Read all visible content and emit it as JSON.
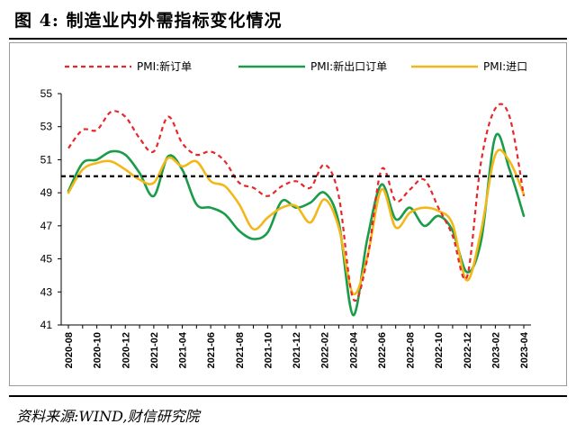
{
  "figure": {
    "title": "图 4:  制造业内外需指标变化情况",
    "source": "资料来源:WIND,财信研究院"
  },
  "chart_data": {
    "type": "line",
    "ylim": [
      41,
      55
    ],
    "yticks": [
      41,
      43,
      45,
      47,
      49,
      51,
      53,
      55
    ],
    "x": [
      "2020-08",
      "2020-09",
      "2020-10",
      "2020-11",
      "2020-12",
      "2021-01",
      "2021-02",
      "2021-03",
      "2021-04",
      "2021-05",
      "2021-06",
      "2021-07",
      "2021-08",
      "2021-09",
      "2021-10",
      "2021-11",
      "2021-12",
      "2022-01",
      "2022-02",
      "2022-03",
      "2022-04",
      "2022-05",
      "2022-06",
      "2022-07",
      "2022-08",
      "2022-09",
      "2022-10",
      "2022-11",
      "2022-12",
      "2023-01",
      "2023-02",
      "2023-03",
      "2023-04"
    ],
    "xtick_labels": [
      "2020-08",
      "2020-10",
      "2020-12",
      "2021-02",
      "2021-04",
      "2021-06",
      "2021-08",
      "2021-10",
      "2021-12",
      "2022-02",
      "2022-04",
      "2022-06",
      "2022-08",
      "2022-10",
      "2022-12",
      "2023-02",
      "2023-04"
    ],
    "grid": false,
    "legend_position": "top",
    "series": [
      {
        "name": "PMI:新订单",
        "color": "#e8272a",
        "style": "dashed",
        "values": [
          51.7,
          52.8,
          52.8,
          53.9,
          53.6,
          52.3,
          51.5,
          53.6,
          52.0,
          51.3,
          51.5,
          50.9,
          49.6,
          49.3,
          48.8,
          49.4,
          49.7,
          49.3,
          50.7,
          48.8,
          42.6,
          45.0,
          50.4,
          48.5,
          49.2,
          49.8,
          48.1,
          46.4,
          43.9,
          50.9,
          54.1,
          53.6,
          48.8
        ]
      },
      {
        "name": "PMI:新出口订单",
        "color": "#1a9c4a",
        "style": "solid",
        "values": [
          49.1,
          50.8,
          51.0,
          51.5,
          51.3,
          50.2,
          48.8,
          51.2,
          50.4,
          48.3,
          48.1,
          47.7,
          46.7,
          46.2,
          46.6,
          48.5,
          48.1,
          48.4,
          49.0,
          47.2,
          41.6,
          46.2,
          49.5,
          47.4,
          48.1,
          47.0,
          47.6,
          46.7,
          44.2,
          46.1,
          52.4,
          50.4,
          47.6
        ]
      },
      {
        "name": "PMI:进口",
        "color": "#f2b81a",
        "style": "solid",
        "values": [
          49.0,
          50.4,
          50.8,
          50.9,
          50.4,
          49.8,
          49.6,
          51.1,
          50.6,
          50.9,
          49.7,
          49.4,
          48.3,
          46.8,
          47.5,
          48.1,
          48.2,
          47.2,
          48.6,
          46.9,
          42.9,
          45.1,
          49.2,
          46.9,
          47.8,
          48.1,
          47.9,
          47.1,
          43.7,
          46.7,
          51.3,
          50.9,
          48.9
        ]
      }
    ],
    "reference_line": {
      "value": 50,
      "color": "#000000",
      "style": "dashed"
    }
  }
}
